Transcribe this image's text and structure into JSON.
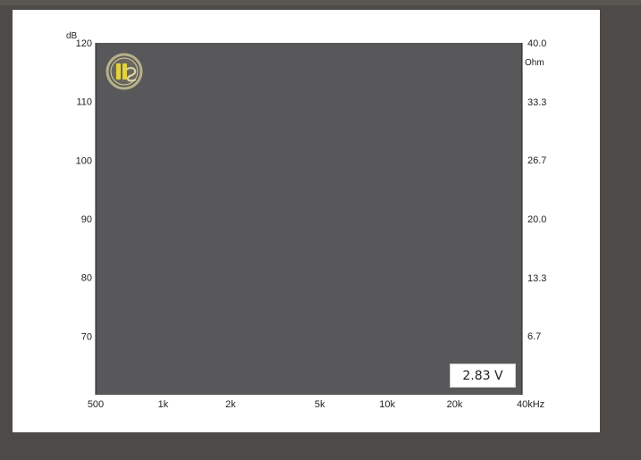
{
  "colors": {
    "background": "#4d4a47",
    "card": "#ffffff",
    "plot_area": "#58585a",
    "axis_text": "#222222",
    "logo_ring": "#b7b08a",
    "logo_accent": "#e4d23a"
  },
  "logo": {
    "icon": "hifi-selbstbau-logo-icon",
    "text": "HS"
  },
  "chart_data": {
    "type": "line",
    "series": [],
    "x_scale": "log",
    "xlim": [
      500,
      40000
    ],
    "ylim_left": [
      60,
      120
    ],
    "ylim_right": [
      0,
      40
    ],
    "x_ticks": [
      {
        "value": 500,
        "label": "500"
      },
      {
        "value": 1000,
        "label": "1k"
      },
      {
        "value": 2000,
        "label": "2k"
      },
      {
        "value": 5000,
        "label": "5k"
      },
      {
        "value": 10000,
        "label": "10k"
      },
      {
        "value": 20000,
        "label": "20k"
      },
      {
        "value": 40000,
        "label": "40kHz"
      }
    ],
    "y_left_ticks": [
      {
        "value": 120,
        "label": "120"
      },
      {
        "value": 110,
        "label": "110"
      },
      {
        "value": 100,
        "label": "100"
      },
      {
        "value": 90,
        "label": "90"
      },
      {
        "value": 80,
        "label": "80"
      },
      {
        "value": 70,
        "label": "70"
      }
    ],
    "y_right_ticks": [
      {
        "value": 40.0,
        "label": "40.0"
      },
      {
        "value": 33.3,
        "label": "33.3"
      },
      {
        "value": 26.7,
        "label": "26.7"
      },
      {
        "value": 20.0,
        "label": "20.0"
      },
      {
        "value": 13.3,
        "label": "13.3"
      },
      {
        "value": 6.7,
        "label": "6.7"
      }
    ],
    "y_left_unit": "dB",
    "y_right_unit": "Ohm",
    "annotation": "2.83 V",
    "grid": false
  }
}
